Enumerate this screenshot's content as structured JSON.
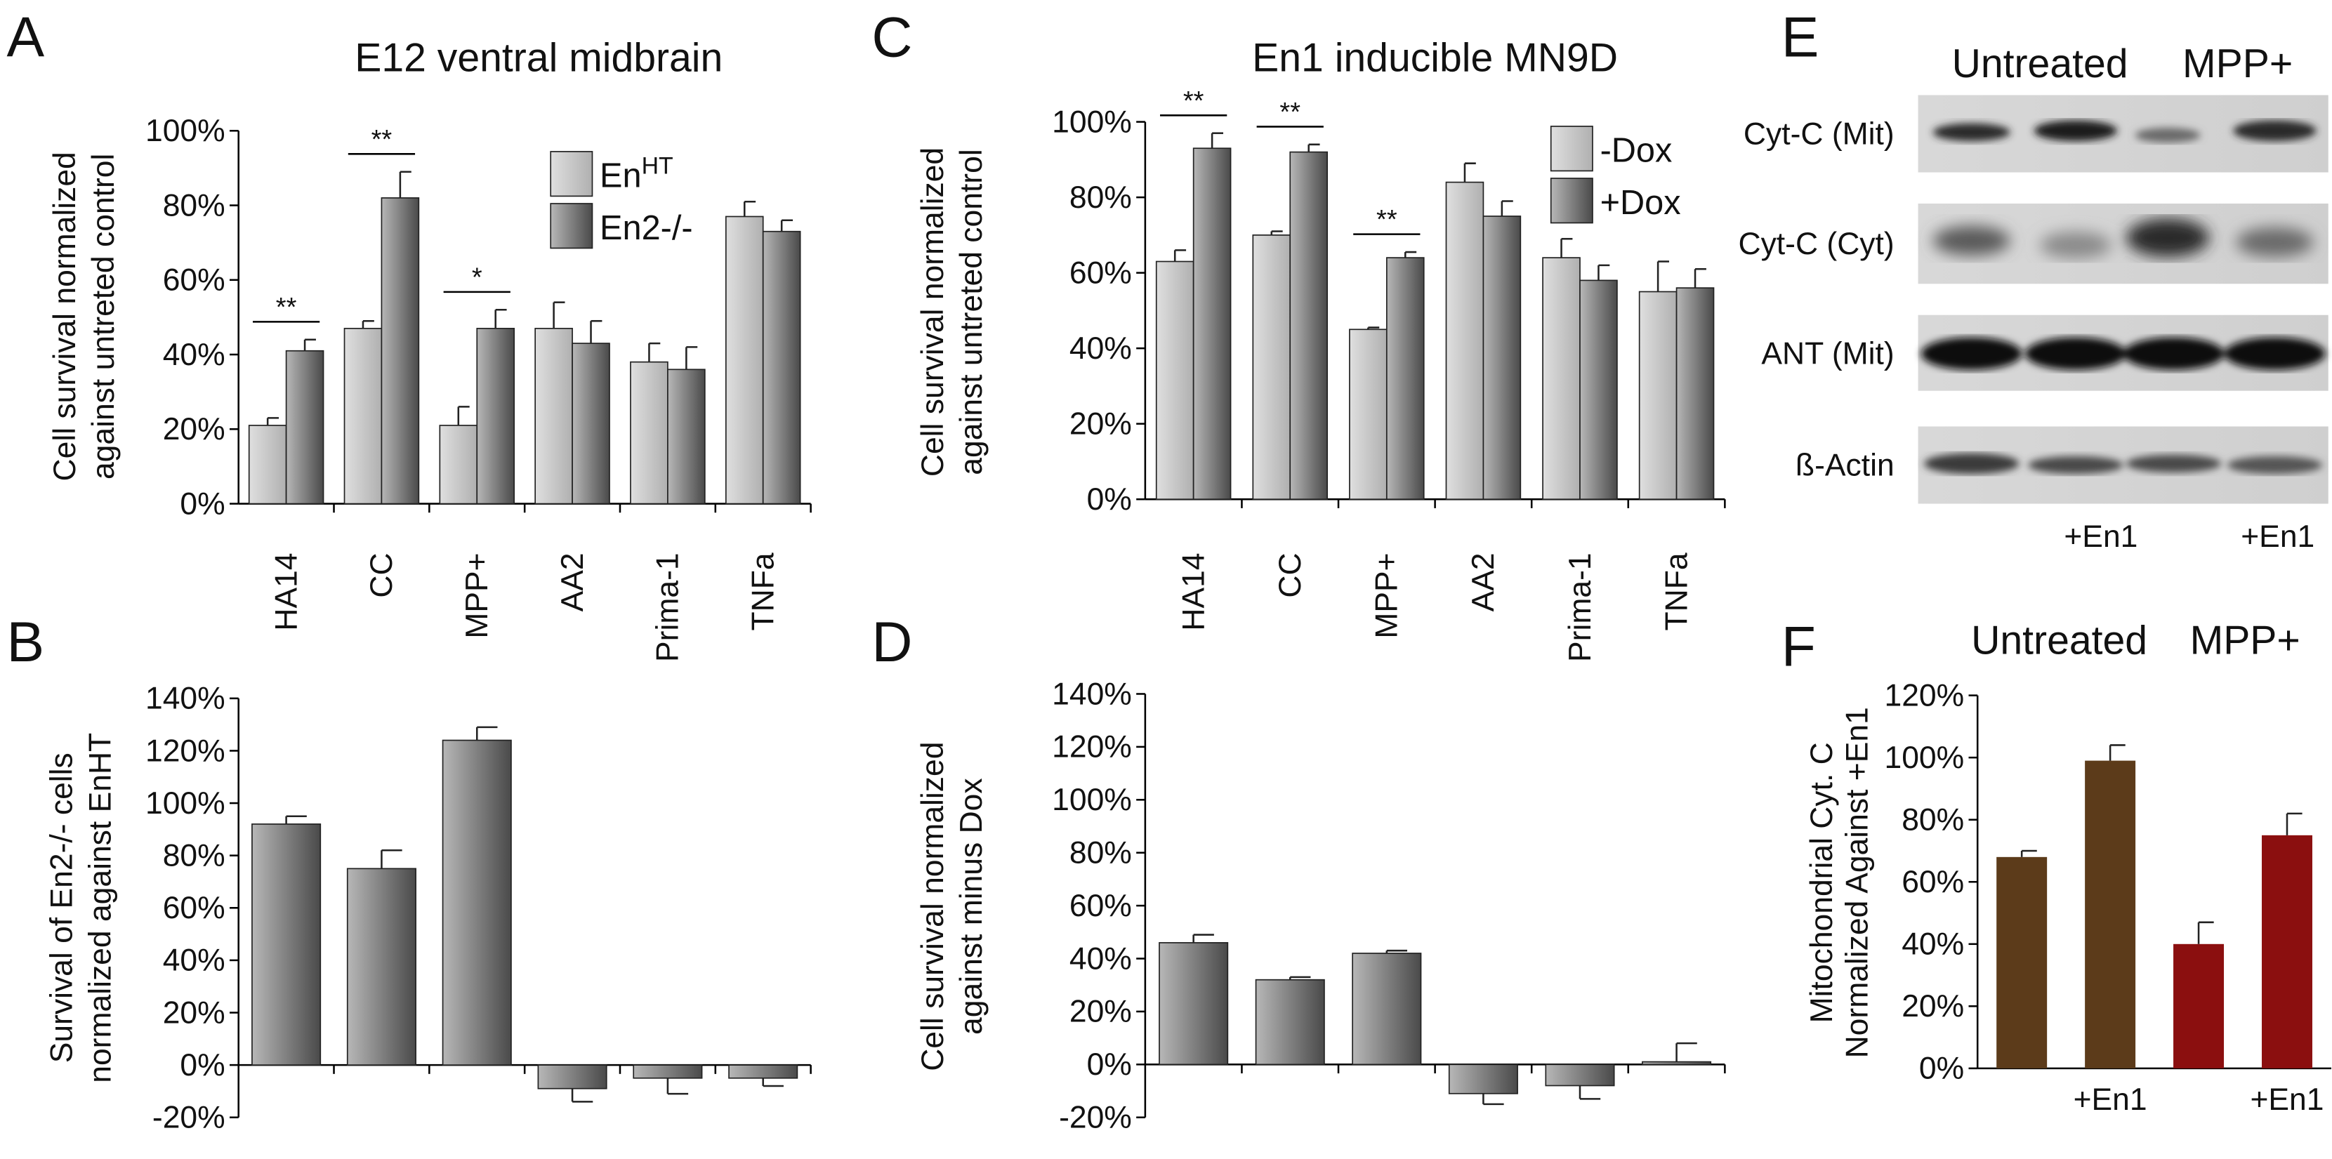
{
  "chart_data": [
    {
      "panel": "A",
      "type": "bar",
      "title": "E12 ventral midbrain",
      "ylabel": [
        "Cell survival normalized",
        "against untreted control"
      ],
      "categories": [
        "HA14",
        "CC",
        "MPP+",
        "AA2",
        "Prima-1",
        "TNFa"
      ],
      "series": [
        {
          "name": "En",
          "name_sup": "HT",
          "color": "#b0b0b0",
          "values": [
            21,
            47,
            21,
            47,
            38,
            77
          ],
          "errors": [
            2,
            2,
            5,
            7,
            5,
            4
          ]
        },
        {
          "name": "En2-/-",
          "color": "#4a4a4a",
          "values": [
            41,
            82,
            47,
            43,
            36,
            73
          ],
          "errors": [
            3,
            7,
            5,
            6,
            6,
            3
          ]
        }
      ],
      "significance": [
        "**",
        "**",
        "*",
        null,
        null,
        null
      ],
      "ylim": [
        0,
        100
      ],
      "yticks": [
        {
          "value": 0,
          "label": "0%"
        },
        {
          "value": 20,
          "label": "20%"
        },
        {
          "value": 40,
          "label": "40%"
        },
        {
          "value": 60,
          "label": "60%"
        },
        {
          "value": 80,
          "label": "80%"
        },
        {
          "value": 100,
          "label": "100%"
        }
      ],
      "gradient": true,
      "legend": "top-right"
    },
    {
      "panel": "B",
      "type": "bar",
      "ylabel": [
        "Survival of En2-/- cells",
        "normalized against EnHT"
      ],
      "color": "#4a4a4a",
      "values": [
        92,
        75,
        124,
        -9,
        -5,
        -5
      ],
      "errors": [
        3,
        7,
        5,
        5,
        6,
        3
      ],
      "ylim": [
        -20,
        140
      ],
      "yticks": [
        {
          "value": -20,
          "label": "-20%"
        },
        {
          "value": 0,
          "label": "0%"
        },
        {
          "value": 20,
          "label": "20%"
        },
        {
          "value": 40,
          "label": "40%"
        },
        {
          "value": 60,
          "label": "60%"
        },
        {
          "value": 80,
          "label": "80%"
        },
        {
          "value": 100,
          "label": "100%"
        },
        {
          "value": 120,
          "label": "120%"
        },
        {
          "value": 140,
          "label": "140%"
        }
      ],
      "gradient": true
    },
    {
      "panel": "C",
      "type": "bar",
      "title": "En1 inducible MN9D",
      "ylabel": [
        "Cell survival normalized",
        "against untreted control"
      ],
      "categories": [
        "HA14",
        "CC",
        "MPP+",
        "AA2",
        "Prima-1",
        "TNFa"
      ],
      "series": [
        {
          "name": "-Dox",
          "color": "#b0b0b0",
          "values": [
            63,
            70,
            45,
            84,
            64,
            55
          ],
          "errors": [
            3,
            1,
            0.5,
            5,
            5,
            8
          ]
        },
        {
          "name": "+Dox",
          "color": "#4a4a4a",
          "values": [
            93,
            92,
            64,
            75,
            58,
            56
          ],
          "errors": [
            4,
            2,
            1.5,
            4,
            4,
            5
          ]
        }
      ],
      "significance": [
        "**",
        "**",
        "**",
        null,
        null,
        null
      ],
      "ylim": [
        0,
        100
      ],
      "yticks": [
        {
          "value": 0,
          "label": "0%"
        },
        {
          "value": 20,
          "label": "20%"
        },
        {
          "value": 40,
          "label": "40%"
        },
        {
          "value": 60,
          "label": "60%"
        },
        {
          "value": 80,
          "label": "80%"
        },
        {
          "value": 100,
          "label": "100%"
        }
      ],
      "gradient": true,
      "legend": "top-right"
    },
    {
      "panel": "D",
      "type": "bar",
      "ylabel": [
        "Cell survival normalized",
        "against minus Dox"
      ],
      "color": "#4a4a4a",
      "values": [
        46,
        32,
        42,
        -11,
        -8,
        1
      ],
      "errors": [
        3,
        1,
        1,
        4,
        5,
        7
      ],
      "ylim": [
        -20,
        140
      ],
      "yticks": [
        {
          "value": -20,
          "label": "-20%"
        },
        {
          "value": 0,
          "label": "0%"
        },
        {
          "value": 20,
          "label": "20%"
        },
        {
          "value": 40,
          "label": "40%"
        },
        {
          "value": 60,
          "label": "60%"
        },
        {
          "value": 80,
          "label": "80%"
        },
        {
          "value": 100,
          "label": "100%"
        },
        {
          "value": 120,
          "label": "120%"
        },
        {
          "value": 140,
          "label": "140%"
        }
      ],
      "gradient": true
    },
    {
      "panel": "F",
      "type": "bar",
      "ylabel": [
        "Mitochondrial Cyt. C",
        "Normalized Against +En1"
      ],
      "group_labels": [
        {
          "label": "Untreated",
          "color": "#5c3b1a"
        },
        {
          "label": "MPP+",
          "color": "#8b0f0f"
        }
      ],
      "categories": [
        null,
        "+En1",
        null,
        "+En1"
      ],
      "values": [
        68,
        99,
        40,
        75
      ],
      "errors": [
        2,
        5,
        7,
        7
      ],
      "colors": [
        "#5c3b1a",
        "#5c3b1a",
        "#8b0f0f",
        "#8b0f0f"
      ],
      "ylim": [
        0,
        120
      ],
      "yticks": [
        {
          "value": 0,
          "label": "0%"
        },
        {
          "value": 20,
          "label": "20%"
        },
        {
          "value": 40,
          "label": "40%"
        },
        {
          "value": 60,
          "label": "60%"
        },
        {
          "value": 80,
          "label": "80%"
        },
        {
          "value": 100,
          "label": "100%"
        },
        {
          "value": 120,
          "label": "120%"
        }
      ],
      "gradient": false
    }
  ],
  "blot": {
    "panel": "E",
    "groups": [
      {
        "label": "Untreated",
        "color": "#5c3b1a"
      },
      {
        "label": "MPP+",
        "color": "#8b0f0f"
      }
    ],
    "rows": [
      "Cyt-C (Mit)",
      "Cyt-C (Cyt)",
      "ANT (Mit)",
      "ß-Actin"
    ],
    "lane_labels": [
      "+En1",
      "+En1"
    ]
  }
}
